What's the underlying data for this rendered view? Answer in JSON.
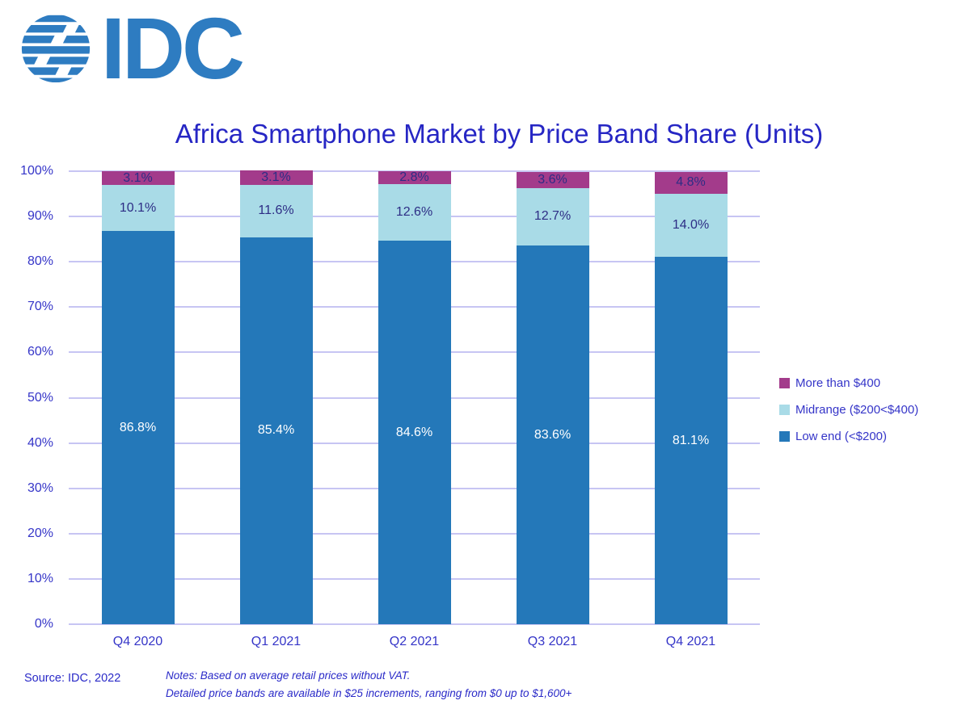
{
  "logo": {
    "text": "IDC",
    "color": "#2E7CC1"
  },
  "title": "Africa Smartphone Market by Price Band Share (Units)",
  "source": "Source: IDC, 2022",
  "notes": {
    "line1": "Notes:  Based on average retail prices without VAT.",
    "line2": "Detailed price bands are available in $25 increments, ranging from $0 up to $1,600+"
  },
  "colors": {
    "low_end": "#2478B9",
    "midrange": "#A9DBE7",
    "more_than_400": "#A33B8B",
    "gridline": "#C7C5F3",
    "axis_text": "#3535C8",
    "title_text": "#2626C4"
  },
  "chart_data": {
    "type": "bar",
    "stacked": true,
    "title": "Africa Smartphone Market by Price Band Share (Units)",
    "categories": [
      "Q4 2020",
      "Q1 2021",
      "Q2 2021",
      "Q3 2021",
      "Q4 2021"
    ],
    "series": [
      {
        "name": "Low end (<$200)",
        "color": "#2478B9",
        "label_color": "#FFFFFF",
        "values": [
          86.8,
          85.4,
          84.6,
          83.6,
          81.1
        ],
        "labels": [
          "86.8%",
          "85.4%",
          "84.6%",
          "83.6%",
          "81.1%"
        ]
      },
      {
        "name": "Midrange ($200<$400)",
        "color": "#A9DBE7",
        "label_color": "#2D2D85",
        "values": [
          10.1,
          11.6,
          12.6,
          12.7,
          14.0
        ],
        "labels": [
          "10.1%",
          "11.6%",
          "12.6%",
          "12.7%",
          "14.0%"
        ]
      },
      {
        "name": "More than $400",
        "color": "#A33B8B",
        "label_color": "#2D2D85",
        "values": [
          3.1,
          3.1,
          2.8,
          3.6,
          4.8
        ],
        "labels": [
          "3.1%",
          "3.1%",
          "2.8%",
          "3.6%",
          "4.8%"
        ]
      }
    ],
    "xlabel": "",
    "ylabel": "",
    "ylim": [
      0,
      100
    ],
    "ytick_labels": [
      "0%",
      "10%",
      "20%",
      "30%",
      "40%",
      "50%",
      "60%",
      "70%",
      "80%",
      "90%",
      "100%"
    ],
    "grid": true,
    "legend_position": "right",
    "legend_order": [
      "More than $400",
      "Midrange ($200<$400)",
      "Low end (<$200)"
    ]
  }
}
